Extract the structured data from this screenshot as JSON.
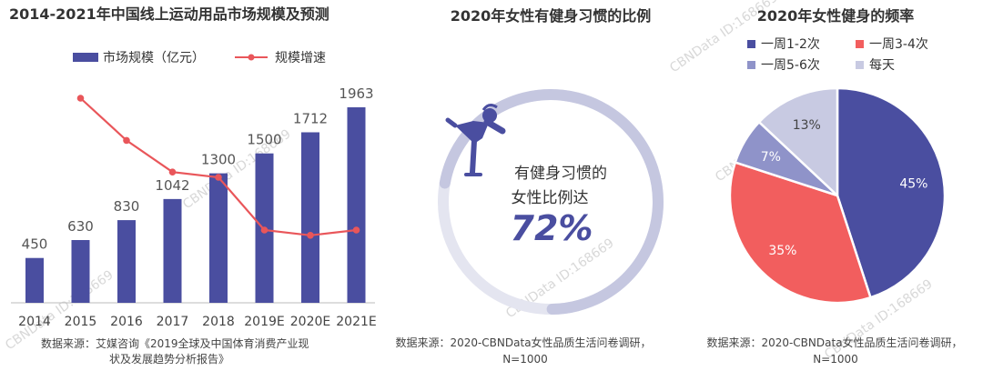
{
  "colors": {
    "bar": "#4a4ea0",
    "growth_line": "#e9565a",
    "ring_track": "#d2d3e6",
    "ring_fill": "#c5c7e0",
    "icon": "#4a4ea0"
  },
  "watermark": "CBNData ID:168669",
  "chart_data": [
    {
      "type": "bar",
      "title": "2014-2021年中国线上运动用品市场规模及预测",
      "legend": {
        "placement": "top",
        "items": [
          {
            "name": "市场规模（亿元）",
            "mark": "bar"
          },
          {
            "name": "规模增速",
            "mark": "line"
          }
        ]
      },
      "categories": [
        "2014",
        "2015",
        "2016",
        "2017",
        "2018",
        "2019E",
        "2020E",
        "2021E"
      ],
      "series": [
        {
          "name": "市场规模（亿元）",
          "type": "bar",
          "values": [
            450,
            630,
            830,
            1042,
            1300,
            1500,
            1712,
            1963
          ]
        },
        {
          "name": "规模增速",
          "type": "line",
          "values": [
            null,
            40,
            32,
            26,
            25,
            15,
            14,
            15
          ]
        }
      ],
      "ylim": [
        0,
        2100
      ],
      "source_lines": [
        "数据来源：艾媒咨询《2019全球及中国体育消费产业现",
        "状及发展趋势分析报告》"
      ]
    },
    {
      "type": "pie",
      "subtype": "donut-gauge",
      "title": "2020年女性有健身习惯的比例",
      "label_lines": [
        "有健身习惯的",
        "女性比例达"
      ],
      "value_text": "72%",
      "value": 72,
      "icon": "yoga-woman-icon",
      "source_lines": [
        "数据来源：2020-CBNData女性品质生活问卷调研，",
        "N=1000"
      ]
    },
    {
      "type": "pie",
      "title": "2020年女性健身的频率",
      "legend": {
        "placement": "top"
      },
      "slices": [
        {
          "label": "一周1-2次",
          "value": 45,
          "value_text": "45%",
          "color": "#4a4ea0"
        },
        {
          "label": "一周3-4次",
          "value": 35,
          "value_text": "35%",
          "color": "#f25e5e"
        },
        {
          "label": "一周5-6次",
          "value": 7,
          "value_text": "7%",
          "color": "#8f93c9"
        },
        {
          "label": "每天",
          "value": 13,
          "value_text": "13%",
          "color": "#c8cae2"
        }
      ],
      "source_lines": [
        "数据来源：2020-CBNData女性品质生活问卷调研，",
        "N=1000"
      ]
    }
  ]
}
